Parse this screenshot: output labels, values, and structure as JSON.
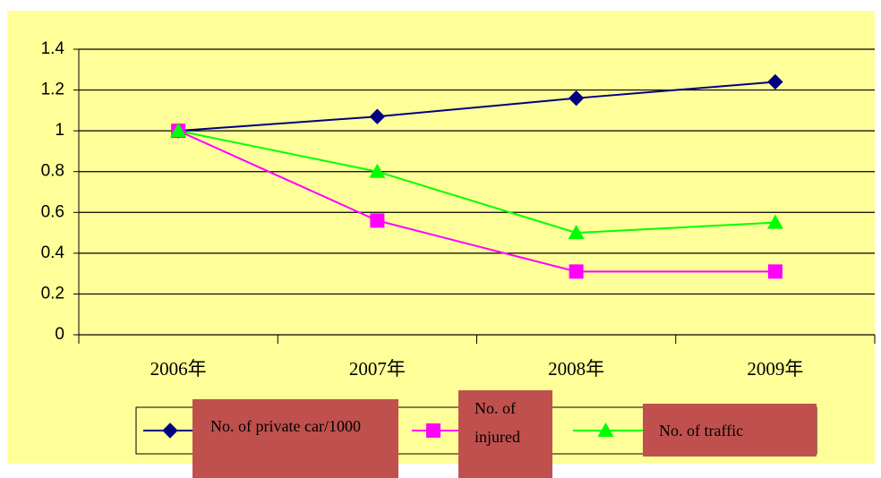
{
  "chart_data": {
    "type": "line",
    "categories": [
      "2006年",
      "2007年",
      "2008年",
      "2009年"
    ],
    "series": [
      {
        "name": "No. of private car/1000",
        "color": "#000080",
        "marker": "diamond",
        "values": [
          1,
          1.07,
          1.16,
          1.24
        ]
      },
      {
        "name": "No. of injured",
        "color": "#ff00ff",
        "marker": "square",
        "values": [
          1,
          0.56,
          0.31,
          0.31
        ]
      },
      {
        "name": "No. of traffic",
        "color": "#00ff00",
        "marker": "triangle",
        "values": [
          1,
          0.8,
          0.5,
          0.55
        ]
      }
    ],
    "ylim": [
      0,
      1.4
    ],
    "yticks": [
      0,
      0.2,
      0.4,
      0.6,
      0.8,
      1,
      1.2,
      1.4
    ],
    "grid": true,
    "legend": "bottom"
  }
}
